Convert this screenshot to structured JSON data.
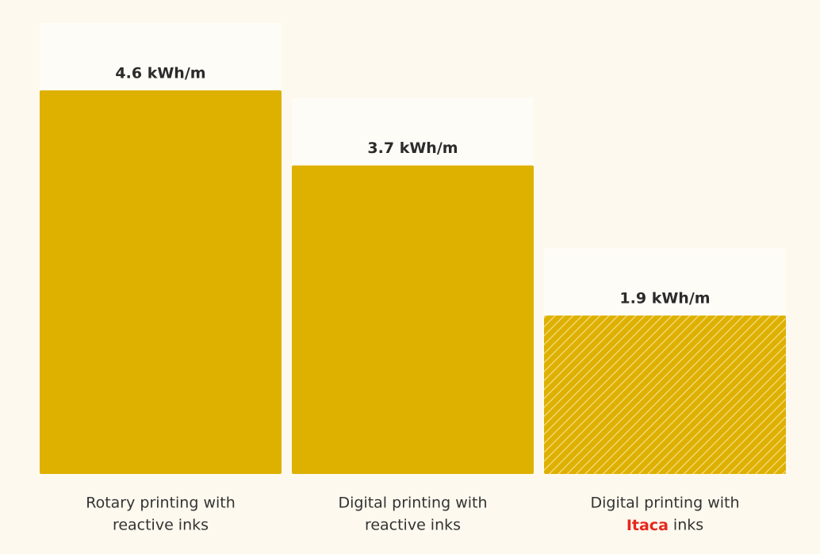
{
  "chart_data": {
    "type": "bar",
    "categories": [
      [
        "Rotary printing with",
        "reactive inks"
      ],
      [
        "Digital printing with",
        "reactive inks"
      ],
      [
        "Digital printing with",
        "Itaca inks"
      ]
    ],
    "values": [
      4.6,
      3.7,
      1.9
    ],
    "value_labels": [
      "4.6 kWh/m",
      "3.7 kWh/m",
      "1.9 kWh/m"
    ],
    "color": "#deb000",
    "patterns": [
      "solid",
      "solid",
      "hatch"
    ],
    "highlight": {
      "text": "Itaca",
      "color": "#e8261c"
    }
  }
}
